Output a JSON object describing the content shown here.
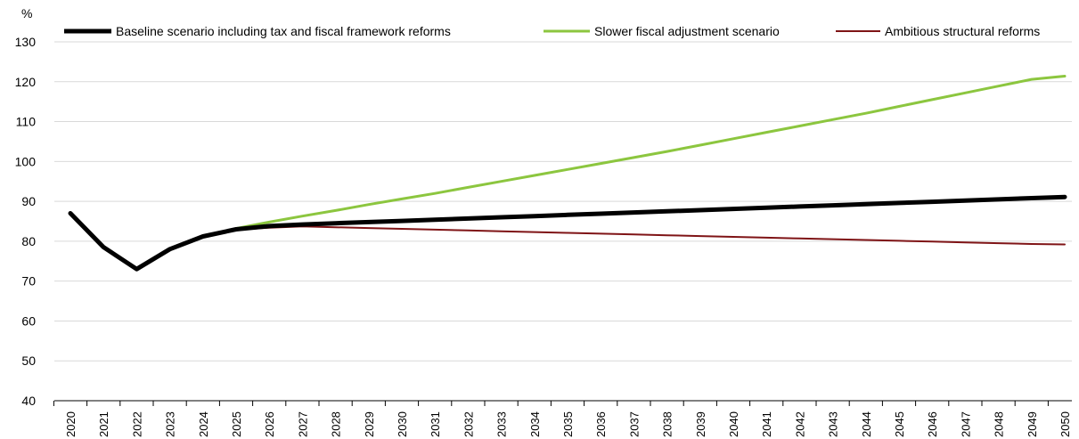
{
  "chart_data": {
    "type": "line",
    "unit_label": "%",
    "ylim": [
      40,
      130
    ],
    "yticks": [
      40,
      50,
      60,
      70,
      80,
      90,
      100,
      110,
      120,
      130
    ],
    "grid": true,
    "legend_position": "top",
    "x": [
      "2020",
      "2021",
      "2022",
      "2023",
      "2024",
      "2025",
      "2026",
      "2027",
      "2028",
      "2029",
      "2030",
      "2031",
      "2032",
      "2033",
      "2034",
      "2035",
      "2036",
      "2037",
      "2038",
      "2039",
      "2040",
      "2041",
      "2042",
      "2043",
      "2044",
      "2045",
      "2046",
      "2047",
      "2048",
      "2049",
      "2050"
    ],
    "series": [
      {
        "name": "Baseline scenario including tax and fiscal framework reforms",
        "color": "#000000",
        "width": 5,
        "values": [
          87,
          78.5,
          73,
          78,
          81.2,
          83,
          83.8,
          84.2,
          84.5,
          84.8,
          85.1,
          85.4,
          85.7,
          86.0,
          86.3,
          86.6,
          86.9,
          87.2,
          87.5,
          87.8,
          88.1,
          88.4,
          88.7,
          89.0,
          89.3,
          89.6,
          89.9,
          90.2,
          90.5,
          90.8,
          91.1
        ]
      },
      {
        "name": "Slower fiscal adjustment scenario",
        "color": "#8cc63f",
        "width": 3,
        "values": [
          null,
          null,
          null,
          null,
          null,
          83.2,
          84.8,
          86.3,
          87.7,
          89.2,
          90.6,
          92.0,
          93.5,
          95.0,
          96.5,
          98.0,
          99.5,
          101.0,
          102.5,
          104.1,
          105.7,
          107.3,
          108.9,
          110.5,
          112.1,
          113.8,
          115.5,
          117.2,
          118.9,
          120.6,
          121.4
        ]
      },
      {
        "name": "Ambitious structural reforms",
        "color": "#7f1416",
        "width": 2,
        "values": [
          null,
          null,
          null,
          null,
          null,
          82.9,
          83.4,
          83.7,
          83.5,
          83.3,
          83.1,
          82.9,
          82.7,
          82.5,
          82.3,
          82.1,
          81.9,
          81.7,
          81.5,
          81.3,
          81.1,
          80.9,
          80.7,
          80.5,
          80.3,
          80.1,
          79.9,
          79.7,
          79.5,
          79.3,
          79.2
        ]
      }
    ]
  }
}
